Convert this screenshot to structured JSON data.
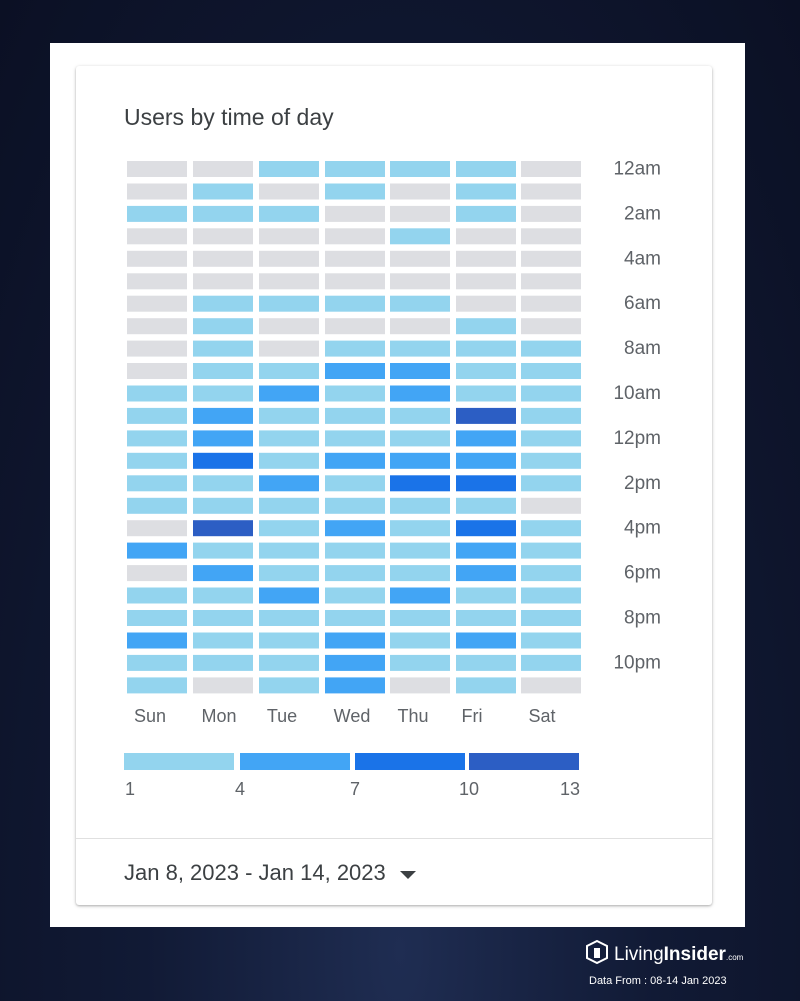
{
  "card": {
    "title": "Users by time of day",
    "date_range_label": "Jan 8, 2023 - Jan 14, 2023"
  },
  "chart_data": {
    "type": "heatmap",
    "title": "Users by time of day",
    "days": [
      "Sun",
      "Mon",
      "Tue",
      "Wed",
      "Thu",
      "Fri",
      "Sat"
    ],
    "hour_tick_labels": [
      "12am",
      "2am",
      "4am",
      "6am",
      "8am",
      "10am",
      "12pm",
      "2pm",
      "4pm",
      "6pm",
      "8pm",
      "10pm"
    ],
    "hours": [
      "12am",
      "1am",
      "2am",
      "3am",
      "4am",
      "5am",
      "6am",
      "7am",
      "8am",
      "9am",
      "10am",
      "11am",
      "12pm",
      "1pm",
      "2pm",
      "3pm",
      "4pm",
      "5pm",
      "6pm",
      "7pm",
      "8pm",
      "9pm",
      "10pm",
      "11pm"
    ],
    "value_range": [
      0,
      13
    ],
    "values_by_hour": [
      [
        0,
        0,
        2,
        2,
        2,
        2,
        0
      ],
      [
        0,
        2,
        0,
        2,
        0,
        2,
        0
      ],
      [
        2,
        2,
        2,
        0,
        0,
        2,
        0
      ],
      [
        0,
        0,
        0,
        0,
        2,
        0,
        0
      ],
      [
        0,
        0,
        0,
        0,
        0,
        0,
        0
      ],
      [
        0,
        0,
        0,
        0,
        0,
        0,
        0
      ],
      [
        0,
        2,
        2,
        2,
        2,
        0,
        0
      ],
      [
        0,
        2,
        0,
        0,
        0,
        2,
        0
      ],
      [
        0,
        2,
        0,
        2,
        2,
        2,
        2
      ],
      [
        0,
        2,
        2,
        5,
        5,
        2,
        2
      ],
      [
        2,
        2,
        5,
        2,
        5,
        2,
        2
      ],
      [
        2,
        5,
        2,
        2,
        2,
        12,
        2
      ],
      [
        2,
        5,
        2,
        2,
        2,
        5,
        2
      ],
      [
        2,
        9,
        2,
        5,
        5,
        5,
        2
      ],
      [
        2,
        2,
        5,
        2,
        9,
        8,
        2
      ],
      [
        2,
        2,
        2,
        2,
        2,
        2,
        0
      ],
      [
        0,
        12,
        2,
        5,
        2,
        8,
        2
      ],
      [
        5,
        2,
        2,
        2,
        2,
        5,
        2
      ],
      [
        0,
        5,
        2,
        2,
        2,
        5,
        2
      ],
      [
        2,
        2,
        5,
        2,
        5,
        2,
        2
      ],
      [
        2,
        2,
        2,
        2,
        2,
        2,
        2
      ],
      [
        5,
        2,
        2,
        5,
        2,
        5,
        2
      ],
      [
        2,
        2,
        2,
        5,
        2,
        2,
        2
      ],
      [
        2,
        0,
        2,
        5,
        0,
        2,
        0
      ]
    ],
    "legend": {
      "ticks": [
        "1",
        "4",
        "7",
        "10",
        "13"
      ],
      "colors": [
        "#93d4ee",
        "#42a5f5",
        "#1a73e8",
        "#2c5ec4"
      ]
    },
    "colors": {
      "empty": "#dddee2",
      "bin_1_4": "#93d4ee",
      "bin_4_7": "#42a5f5",
      "bin_7_10": "#1a73e8",
      "bin_10_13": "#2c5ec4"
    }
  },
  "branding": {
    "name_light": "Living",
    "name_bold": "Insider",
    "name_suffix": ".com",
    "data_from": "Data From : 08-14 Jan 2023",
    "logo_icon": "living-insider-logo-icon"
  }
}
